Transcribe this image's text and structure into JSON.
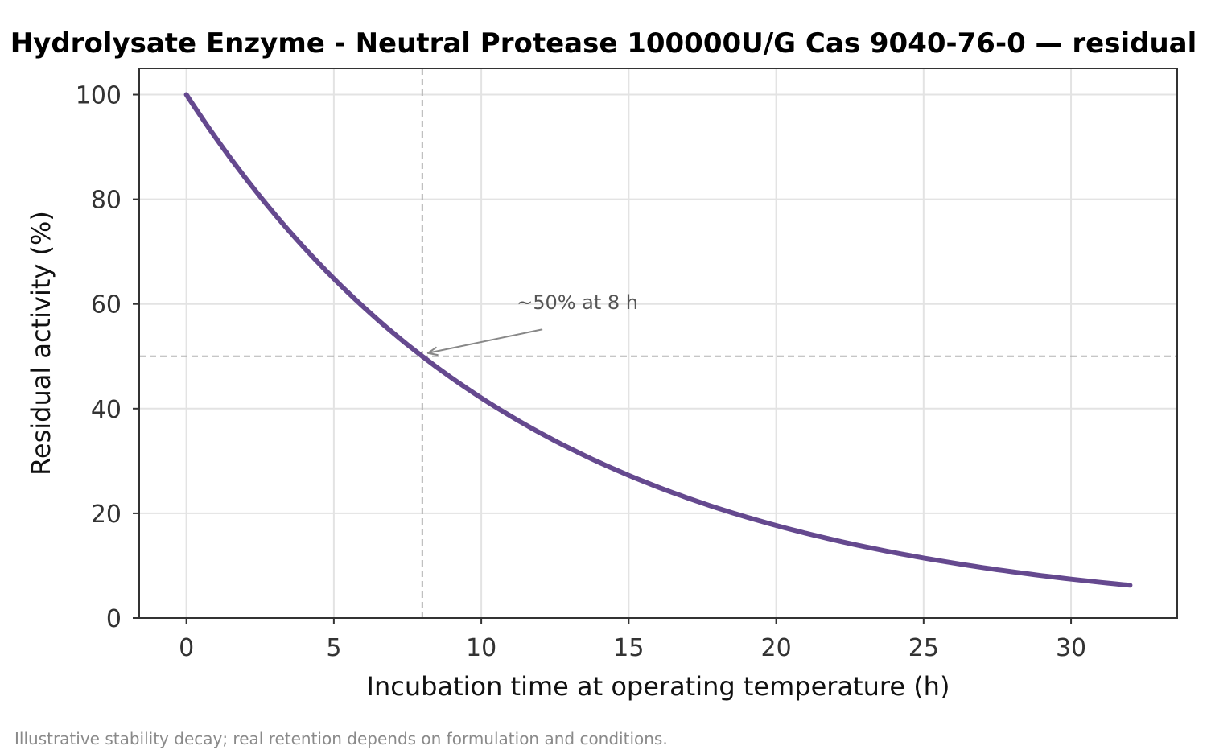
{
  "chart_data": {
    "type": "line",
    "title": "Hydrolysate Enzyme - Neutral Protease 100000U/G Cas 9040-76-0 — residual",
    "xlabel": "Incubation time at operating temperature (h)",
    "ylabel": "Residual activity (%)",
    "xlim": [
      -1.6,
      33.6
    ],
    "ylim": [
      0,
      105
    ],
    "x_ticks": [
      0,
      5,
      10,
      15,
      20,
      25,
      30
    ],
    "y_ticks": [
      0,
      20,
      40,
      60,
      80,
      100
    ],
    "grid": true,
    "series": [
      {
        "color": "#65498f",
        "x": [
          0,
          2,
          4,
          6,
          8,
          10,
          12,
          14,
          16,
          18,
          20,
          22,
          24,
          26,
          28,
          30,
          32
        ],
        "y": [
          100,
          84.1,
          70.7,
          59.5,
          50.0,
          42.0,
          35.4,
          29.7,
          25.0,
          21.0,
          17.7,
          14.9,
          12.5,
          10.5,
          8.8,
          7.4,
          6.25
        ]
      }
    ],
    "reference_lines": {
      "x": 8,
      "y": 50,
      "color": "#b3b3b3"
    },
    "annotation": {
      "text": "~50% at 8 h",
      "point": [
        8,
        50
      ],
      "text_at": [
        11.2,
        59
      ]
    }
  },
  "footnote": "Illustrative stability decay; real retention depends on formulation and conditions."
}
